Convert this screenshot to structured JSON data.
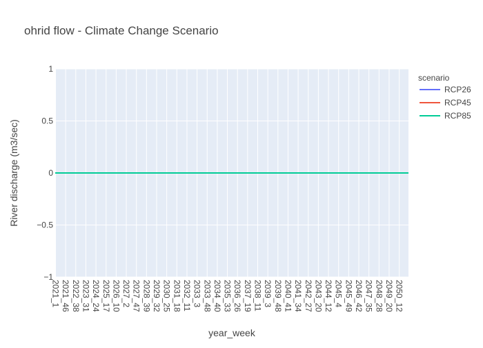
{
  "chart_data": {
    "type": "line",
    "title": "ohrid flow - Climate Change Scenario",
    "xlabel": "year_week",
    "ylabel": "River discharge (m3/sec)",
    "ylim": [
      -1,
      1
    ],
    "yticks": [
      -1,
      -0.5,
      0,
      0.5,
      1
    ],
    "ytick_labels": [
      "−1",
      "−0.5",
      "0",
      "0.5",
      "1"
    ],
    "x_tick_labels": [
      "2021_1",
      "2021_46",
      "2022_38",
      "2023_31",
      "2024_24",
      "2025_17",
      "2026_10",
      "2027_2",
      "2027_47",
      "2028_39",
      "2029_32",
      "2030_25",
      "2031_18",
      "2032_11",
      "2033_3",
      "2033_48",
      "2034_40",
      "2035_33",
      "2036_26",
      "2037_19",
      "2038_11",
      "2039_3",
      "2039_48",
      "2040_41",
      "2041_34",
      "2042_27",
      "2043_20",
      "2044_12",
      "2045_4",
      "2045_49",
      "2046_42",
      "2047_35",
      "2048_28",
      "2049_20",
      "2050_12"
    ],
    "grid": true,
    "legend": {
      "title": "scenario",
      "placement": "right"
    },
    "series": [
      {
        "name": "RCP26",
        "color": "#636efa",
        "value": 0
      },
      {
        "name": "RCP45",
        "color": "#EF553B",
        "value": 0
      },
      {
        "name": "RCP85",
        "color": "#00cc96",
        "value": 0
      }
    ]
  }
}
